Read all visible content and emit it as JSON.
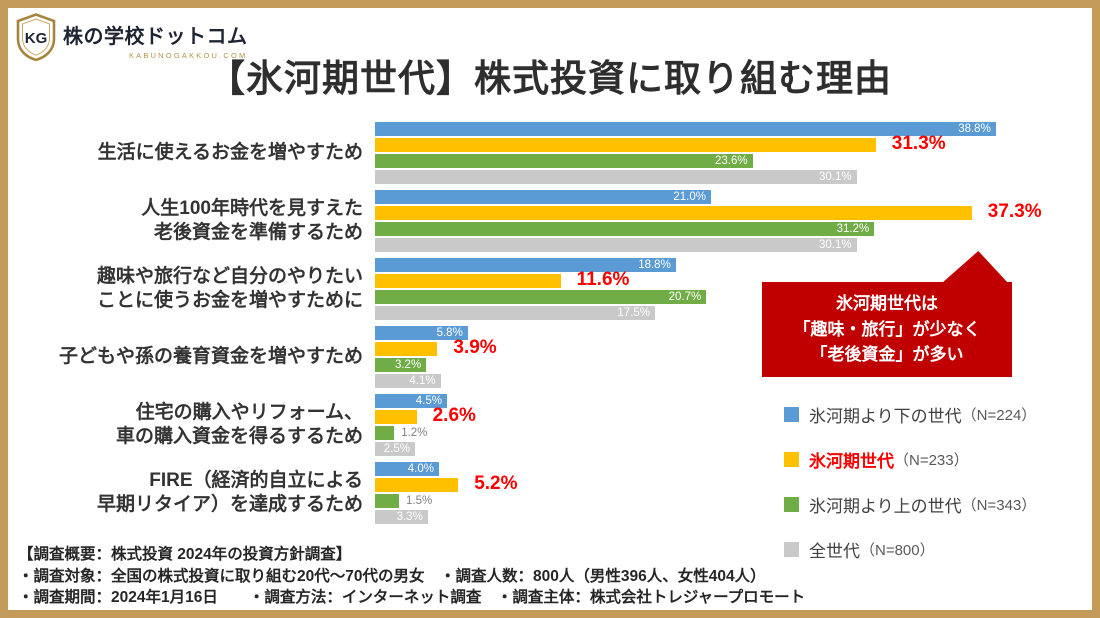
{
  "title": "【氷河期世代】株式投資に取り組む理由",
  "logo": {
    "monogram": "KG",
    "name": "株の学校ドットコム",
    "domain": "KABUNOGAKKOU.COM"
  },
  "chart_data": {
    "type": "bar",
    "orientation": "horizontal",
    "title": "【氷河期世代】株式投資に取り組む理由",
    "unit": "%",
    "xlim": [
      0,
      40
    ],
    "grid": false,
    "legend_position": "right-bottom",
    "categories": [
      {
        "label_lines": [
          "生活に使えるお金を増やすため"
        ]
      },
      {
        "label_lines": [
          "人生100年時代を見すえた",
          "老後資金を準備するため"
        ]
      },
      {
        "label_lines": [
          "趣味や旅行など自分のやりたい",
          "ことに使うお金を増やすために"
        ]
      },
      {
        "label_lines": [
          "子どもや孫の養育資金を増やすため"
        ]
      },
      {
        "label_lines": [
          "住宅の購入やリフォーム、",
          "車の購入資金を得るするため"
        ]
      },
      {
        "label_lines": [
          "FIRE（経済的自立による",
          "早期リタイア）を達成するため"
        ]
      }
    ],
    "series": [
      {
        "key": "younger",
        "name": "氷河期より下の世代",
        "n_label": "（N=224）",
        "color": "#5B9BD5",
        "highlight": false,
        "values": [
          38.8,
          21.0,
          18.8,
          5.8,
          4.5,
          4.0
        ]
      },
      {
        "key": "iceage",
        "name": "氷河期世代",
        "n_label": "（N=233）",
        "color": "#FFC000",
        "highlight": true,
        "values": [
          31.3,
          37.3,
          11.6,
          3.9,
          2.6,
          5.2
        ]
      },
      {
        "key": "older",
        "name": "氷河期より上の世代",
        "n_label": "（N=343）",
        "color": "#70AD47",
        "highlight": false,
        "values": [
          23.6,
          31.2,
          20.7,
          3.2,
          1.2,
          1.5
        ]
      },
      {
        "key": "all",
        "name": "全世代",
        "n_label": "（N=800）",
        "color": "#C9C9C9",
        "highlight": false,
        "values": [
          30.1,
          30.1,
          17.5,
          4.1,
          2.5,
          3.3
        ]
      }
    ]
  },
  "callout": {
    "lines": [
      "氷河期世代は",
      "「趣味・旅行」が少なく",
      "「老後資金」が多い"
    ],
    "bg_color": "#C00000",
    "text_color": "#FFFFFF"
  },
  "footer": {
    "lines": [
      "【調査概要：株式投資 2024年の投資方針調査】",
      "・調査対象：全国の株式投資に取り組む20代～70代の男女　・調査人数：800人（男性396人、女性404人）",
      "・調査期間：2024年1月16日　　・調査方法：インターネット調査　・調査主体：株式会社トレジャープロモート"
    ]
  },
  "colors": {
    "frame_border": "#C49B5B",
    "highlight_value": "#FF0000",
    "inside_label": "#FFFFFF",
    "outside_label": "#7F7F7F"
  }
}
